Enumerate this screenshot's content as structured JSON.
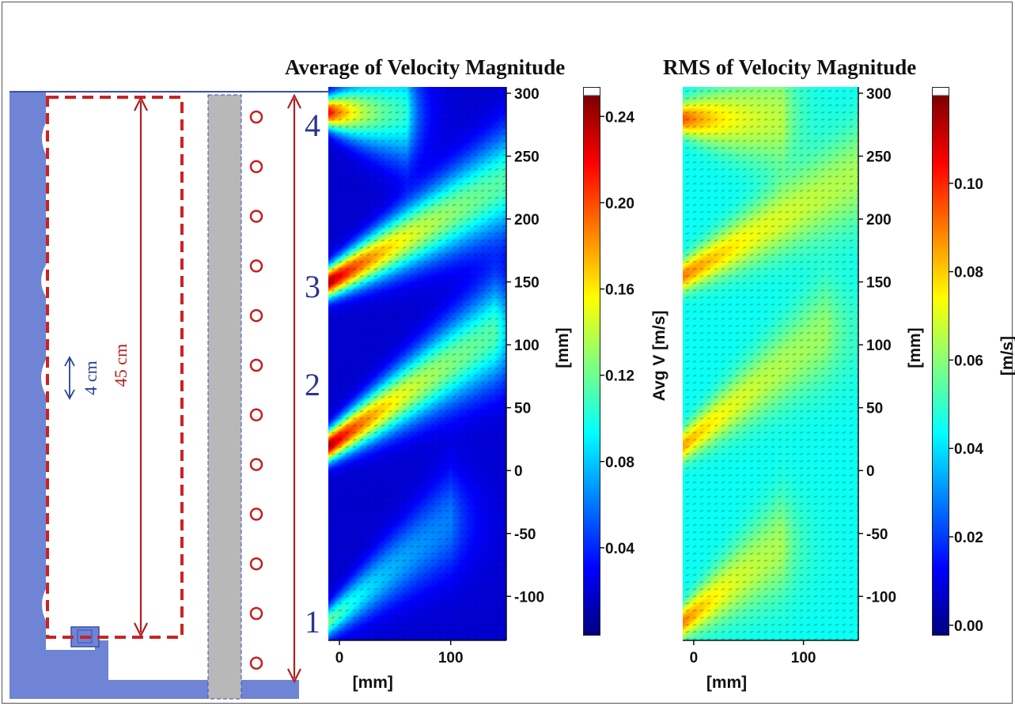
{
  "schematic": {
    "height_label": "45 cm",
    "spacing_label": "4 cm",
    "inlet_labels": [
      "1",
      "2",
      "3",
      "4"
    ],
    "colors": {
      "wall": "#6f84d4",
      "dashed": "#cc2222",
      "probe": "#b8b8b8",
      "marker": "#c42020",
      "dim_blue": "#2a3f98"
    }
  },
  "chart_data": [
    {
      "type": "heatmap",
      "title": "Average of Velocity Magnitude",
      "xlabel": "[mm]",
      "ylabel": "[mm]",
      "x_ticks": [
        0,
        100
      ],
      "y_ticks": [
        300,
        250,
        200,
        150,
        100,
        50,
        0,
        -50,
        -100
      ],
      "xlim": [
        -10,
        150
      ],
      "ylim": [
        -135,
        305
      ],
      "colorbar": {
        "label": "Avg V [m/s]",
        "ticks": [
          0.24,
          0.2,
          0.16,
          0.12,
          0.08,
          0.04
        ],
        "range": [
          0.0,
          0.25
        ]
      },
      "background_value": 0.02,
      "jets": [
        {
          "x": [
            -10,
            60
          ],
          "y": [
            285,
            285
          ],
          "value": 0.22
        },
        {
          "x": [
            -10,
            150
          ],
          "y": [
            150,
            230
          ],
          "value": 0.24
        },
        {
          "x": [
            -10,
            140
          ],
          "y": [
            20,
            110
          ],
          "value": 0.24
        },
        {
          "x": [
            -10,
            100
          ],
          "y": [
            -120,
            -40
          ],
          "value": 0.12
        }
      ]
    },
    {
      "type": "heatmap",
      "title": "RMS of Velocity Magnitude",
      "xlabel": "[mm]",
      "ylabel": "[mm]",
      "x_ticks": [
        0,
        100
      ],
      "y_ticks": [
        300,
        250,
        200,
        150,
        100,
        50,
        0,
        -50,
        -100
      ],
      "xlim": [
        -10,
        150
      ],
      "ylim": [
        -135,
        305
      ],
      "colorbar": {
        "label": "[m/s]",
        "ticks": [
          0.1,
          0.08,
          0.06,
          0.04,
          0.02,
          0.0
        ],
        "range": [
          -0.002,
          0.12
        ]
      },
      "background_value": 0.045,
      "jets": [
        {
          "x": [
            -10,
            80
          ],
          "y": [
            280,
            280
          ],
          "value": 0.095
        },
        {
          "x": [
            -10,
            150
          ],
          "y": [
            155,
            235
          ],
          "value": 0.09
        },
        {
          "x": [
            -10,
            120
          ],
          "y": [
            20,
            110
          ],
          "value": 0.085
        },
        {
          "x": [
            -10,
            80
          ],
          "y": [
            -120,
            -60
          ],
          "value": 0.09
        }
      ]
    }
  ]
}
